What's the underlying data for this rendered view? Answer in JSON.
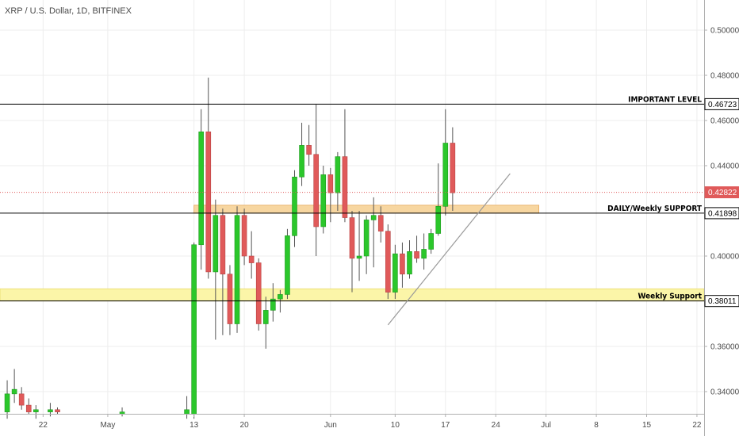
{
  "header": {
    "symbol": "XRP / U.S. Dollar, 1D, BITFINEX"
  },
  "colors": {
    "up": "#2bc72b",
    "down": "#e05a5a",
    "wick": "#555555",
    "grid": "#ededed",
    "orange_zone": "#f7d6a0",
    "yellow_zone": "#fbf5a8",
    "current_price": "#e05a5a"
  },
  "chart_data": {
    "type": "candlestick",
    "ylim": [
      0.33,
      0.51
    ],
    "grid": true,
    "y_ticks": [
      {
        "value": 0.34,
        "label": "0.34000"
      },
      {
        "value": 0.36,
        "label": "0.36000"
      },
      {
        "value": 0.4,
        "label": "0.40000"
      },
      {
        "value": 0.44,
        "label": "0.44000"
      },
      {
        "value": 0.46,
        "label": "0.46000"
      },
      {
        "value": 0.48,
        "label": "0.48000"
      },
      {
        "value": 0.5,
        "label": "0.50000"
      }
    ],
    "x_ticks": [
      {
        "date": "Apr 22",
        "label": "22"
      },
      {
        "date": "May 1",
        "label": "May"
      },
      {
        "date": "May 13",
        "label": "13"
      },
      {
        "date": "May 20",
        "label": "20"
      },
      {
        "date": "Jun 1",
        "label": "Jun"
      },
      {
        "date": "Jun 10",
        "label": "10"
      },
      {
        "date": "Jun 17",
        "label": "17"
      },
      {
        "date": "Jun 24",
        "label": "24"
      },
      {
        "date": "Jul 1",
        "label": "Jul"
      },
      {
        "date": "Jul 8",
        "label": "8"
      },
      {
        "date": "Jul 15",
        "label": "15"
      },
      {
        "date": "Jul 22",
        "label": "22"
      }
    ],
    "x_range": [
      "Apr 16",
      "Jul 23"
    ],
    "candles": [
      {
        "date": "Apr 17",
        "o": 0.331,
        "h": 0.345,
        "l": 0.328,
        "c": 0.339
      },
      {
        "date": "Apr 18",
        "o": 0.339,
        "h": 0.35,
        "l": 0.335,
        "c": 0.341
      },
      {
        "date": "Apr 19",
        "o": 0.339,
        "h": 0.342,
        "l": 0.332,
        "c": 0.334
      },
      {
        "date": "Apr 20",
        "o": 0.334,
        "h": 0.337,
        "l": 0.33,
        "c": 0.331
      },
      {
        "date": "Apr 21",
        "o": 0.331,
        "h": 0.334,
        "l": 0.328,
        "c": 0.332
      },
      {
        "date": "Apr 23",
        "o": 0.331,
        "h": 0.335,
        "l": 0.329,
        "c": 0.332
      },
      {
        "date": "Apr 24",
        "o": 0.332,
        "h": 0.333,
        "l": 0.33,
        "c": 0.331
      },
      {
        "date": "May 3",
        "o": 0.33,
        "h": 0.333,
        "l": 0.329,
        "c": 0.331
      },
      {
        "date": "May 12",
        "o": 0.33,
        "h": 0.338,
        "l": 0.328,
        "c": 0.332
      },
      {
        "date": "May 13",
        "o": 0.33,
        "h": 0.406,
        "l": 0.328,
        "c": 0.405
      },
      {
        "date": "May 14",
        "o": 0.405,
        "h": 0.465,
        "l": 0.394,
        "c": 0.455
      },
      {
        "date": "May 15",
        "o": 0.455,
        "h": 0.479,
        "l": 0.39,
        "c": 0.393
      },
      {
        "date": "May 16",
        "o": 0.393,
        "h": 0.425,
        "l": 0.363,
        "c": 0.418
      },
      {
        "date": "May 17",
        "o": 0.418,
        "h": 0.421,
        "l": 0.365,
        "c": 0.392
      },
      {
        "date": "May 18",
        "o": 0.392,
        "h": 0.396,
        "l": 0.365,
        "c": 0.37
      },
      {
        "date": "May 19",
        "o": 0.37,
        "h": 0.422,
        "l": 0.366,
        "c": 0.418
      },
      {
        "date": "May 20",
        "o": 0.418,
        "h": 0.421,
        "l": 0.396,
        "c": 0.4
      },
      {
        "date": "May 21",
        "o": 0.4,
        "h": 0.411,
        "l": 0.39,
        "c": 0.397
      },
      {
        "date": "May 22",
        "o": 0.397,
        "h": 0.399,
        "l": 0.367,
        "c": 0.37
      },
      {
        "date": "May 23",
        "o": 0.37,
        "h": 0.382,
        "l": 0.359,
        "c": 0.376
      },
      {
        "date": "May 24",
        "o": 0.376,
        "h": 0.388,
        "l": 0.371,
        "c": 0.381
      },
      {
        "date": "May 25",
        "o": 0.381,
        "h": 0.385,
        "l": 0.375,
        "c": 0.383
      },
      {
        "date": "May 26",
        "o": 0.383,
        "h": 0.412,
        "l": 0.381,
        "c": 0.409
      },
      {
        "date": "May 27",
        "o": 0.409,
        "h": 0.438,
        "l": 0.404,
        "c": 0.435
      },
      {
        "date": "May 28",
        "o": 0.435,
        "h": 0.459,
        "l": 0.431,
        "c": 0.449
      },
      {
        "date": "May 29",
        "o": 0.449,
        "h": 0.458,
        "l": 0.44,
        "c": 0.445
      },
      {
        "date": "May 30",
        "o": 0.445,
        "h": 0.467,
        "l": 0.4,
        "c": 0.413
      },
      {
        "date": "May 31",
        "o": 0.413,
        "h": 0.44,
        "l": 0.41,
        "c": 0.436
      },
      {
        "date": "Jun 1",
        "o": 0.436,
        "h": 0.439,
        "l": 0.415,
        "c": 0.428
      },
      {
        "date": "Jun 2",
        "o": 0.428,
        "h": 0.446,
        "l": 0.42,
        "c": 0.444
      },
      {
        "date": "Jun 3",
        "o": 0.444,
        "h": 0.465,
        "l": 0.415,
        "c": 0.417
      },
      {
        "date": "Jun 4",
        "o": 0.417,
        "h": 0.42,
        "l": 0.384,
        "c": 0.399
      },
      {
        "date": "Jun 5",
        "o": 0.399,
        "h": 0.42,
        "l": 0.389,
        "c": 0.4
      },
      {
        "date": "Jun 6",
        "o": 0.4,
        "h": 0.418,
        "l": 0.392,
        "c": 0.416
      },
      {
        "date": "Jun 7",
        "o": 0.416,
        "h": 0.426,
        "l": 0.395,
        "c": 0.418
      },
      {
        "date": "Jun 8",
        "o": 0.418,
        "h": 0.422,
        "l": 0.406,
        "c": 0.411
      },
      {
        "date": "Jun 9",
        "o": 0.411,
        "h": 0.414,
        "l": 0.381,
        "c": 0.384
      },
      {
        "date": "Jun 10",
        "o": 0.384,
        "h": 0.405,
        "l": 0.381,
        "c": 0.401
      },
      {
        "date": "Jun 11",
        "o": 0.401,
        "h": 0.406,
        "l": 0.386,
        "c": 0.392
      },
      {
        "date": "Jun 12",
        "o": 0.392,
        "h": 0.407,
        "l": 0.39,
        "c": 0.402
      },
      {
        "date": "Jun 13",
        "o": 0.402,
        "h": 0.409,
        "l": 0.397,
        "c": 0.399
      },
      {
        "date": "Jun 14",
        "o": 0.399,
        "h": 0.41,
        "l": 0.394,
        "c": 0.403
      },
      {
        "date": "Jun 15",
        "o": 0.403,
        "h": 0.412,
        "l": 0.401,
        "c": 0.41
      },
      {
        "date": "Jun 16",
        "o": 0.41,
        "h": 0.441,
        "l": 0.409,
        "c": 0.422
      },
      {
        "date": "Jun 17",
        "o": 0.422,
        "h": 0.465,
        "l": 0.418,
        "c": 0.45
      },
      {
        "date": "Jun 18",
        "o": 0.45,
        "h": 0.457,
        "l": 0.42,
        "c": 0.428
      }
    ],
    "annotations": [
      {
        "name": "important-level",
        "label": "IMPORTANT LEVEL",
        "value": 0.46723,
        "tag": "0.46723"
      },
      {
        "name": "daily-weekly-support",
        "label": "DAILY/Weekly SUPPORT",
        "value": 0.41898,
        "tag": "0.41898",
        "zone": [
          0.41898,
          0.4225
        ],
        "zone_from": "May 13",
        "zone_to": "Jun 30"
      },
      {
        "name": "weekly-support",
        "label": "Weekly Support",
        "value": 0.38011,
        "tag": "0.38011",
        "zone": [
          0.38011,
          0.3855
        ]
      }
    ],
    "current_price": {
      "value": 0.42822,
      "tag": "0.42822"
    },
    "trendline": {
      "from": {
        "date": "Jun 9",
        "value": 0.3695
      },
      "to": {
        "date": "Jun 26",
        "value": 0.4365
      }
    }
  }
}
